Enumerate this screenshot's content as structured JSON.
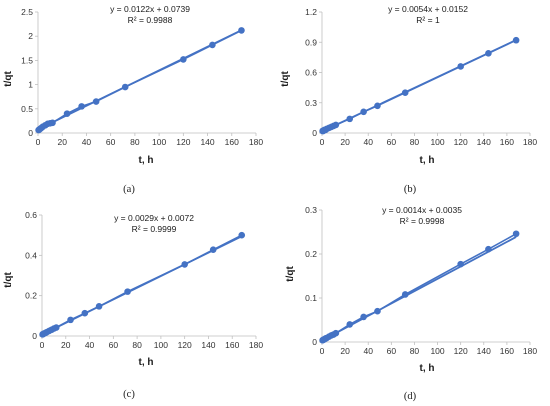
{
  "chart_data": [
    {
      "type": "scatter",
      "panel_label": "(a)",
      "xlabel": "t, h",
      "ylabel": "t/qt",
      "xlim": [
        0,
        180
      ],
      "ylim": [
        0,
        2.5
      ],
      "xticks": [
        "0",
        "20",
        "40",
        "60",
        "80",
        "100",
        "120",
        "140",
        "160",
        "180"
      ],
      "yticks": [
        "0",
        "0.5",
        "1",
        "1.5",
        "2",
        "2.5"
      ],
      "equation": "y = 0.0122x + 0.0739",
      "r2_text": "R² = 0.9988",
      "trendline": {
        "slope": 0.0122,
        "intercept": 0.0739
      },
      "points": [
        {
          "x": 0.5,
          "y": 0.06
        },
        {
          "x": 1,
          "y": 0.07
        },
        {
          "x": 2,
          "y": 0.09
        },
        {
          "x": 3,
          "y": 0.11
        },
        {
          "x": 4,
          "y": 0.13
        },
        {
          "x": 6,
          "y": 0.16
        },
        {
          "x": 8,
          "y": 0.19
        },
        {
          "x": 10,
          "y": 0.2
        },
        {
          "x": 12,
          "y": 0.21
        },
        {
          "x": 24,
          "y": 0.4
        },
        {
          "x": 36,
          "y": 0.55
        },
        {
          "x": 48,
          "y": 0.65
        },
        {
          "x": 72,
          "y": 0.95
        },
        {
          "x": 120,
          "y": 1.52
        },
        {
          "x": 144,
          "y": 1.82
        },
        {
          "x": 168,
          "y": 2.12
        }
      ]
    },
    {
      "type": "scatter",
      "panel_label": "(b)",
      "xlabel": "t, h",
      "ylabel": "t/qt",
      "xlim": [
        0,
        180
      ],
      "ylim": [
        0,
        1.2
      ],
      "xticks": [
        "0",
        "20",
        "40",
        "60",
        "80",
        "100",
        "120",
        "140",
        "160",
        "180"
      ],
      "yticks": [
        "0",
        "0.3",
        "0.6",
        "0.9",
        "1.2"
      ],
      "equation": "y = 0.0054x + 0.0152",
      "r2_text": "R² = 1",
      "trendline": {
        "slope": 0.0054,
        "intercept": 0.0152
      },
      "points": [
        {
          "x": 0.5,
          "y": 0.02
        },
        {
          "x": 1,
          "y": 0.02
        },
        {
          "x": 2,
          "y": 0.03
        },
        {
          "x": 3,
          "y": 0.03
        },
        {
          "x": 4,
          "y": 0.04
        },
        {
          "x": 6,
          "y": 0.05
        },
        {
          "x": 8,
          "y": 0.06
        },
        {
          "x": 10,
          "y": 0.07
        },
        {
          "x": 12,
          "y": 0.08
        },
        {
          "x": 24,
          "y": 0.14
        },
        {
          "x": 36,
          "y": 0.21
        },
        {
          "x": 48,
          "y": 0.27
        },
        {
          "x": 72,
          "y": 0.4
        },
        {
          "x": 120,
          "y": 0.66
        },
        {
          "x": 144,
          "y": 0.79
        },
        {
          "x": 168,
          "y": 0.92
        }
      ]
    },
    {
      "type": "scatter",
      "panel_label": "(c)",
      "xlabel": "t, h",
      "ylabel": "t/qt",
      "xlim": [
        0,
        180
      ],
      "ylim": [
        0,
        0.6
      ],
      "xticks": [
        "0",
        "20",
        "40",
        "60",
        "80",
        "100",
        "120",
        "140",
        "160",
        "180"
      ],
      "yticks": [
        "0",
        "0.2",
        "0.4",
        "0.6"
      ],
      "equation": "y = 0.0029x + 0.0072",
      "r2_text": "R² = 0.9999",
      "trendline": {
        "slope": 0.0029,
        "intercept": 0.0072
      },
      "points": [
        {
          "x": 0.5,
          "y": 0.008
        },
        {
          "x": 1,
          "y": 0.01
        },
        {
          "x": 2,
          "y": 0.013
        },
        {
          "x": 3,
          "y": 0.016
        },
        {
          "x": 4,
          "y": 0.019
        },
        {
          "x": 6,
          "y": 0.025
        },
        {
          "x": 8,
          "y": 0.031
        },
        {
          "x": 10,
          "y": 0.037
        },
        {
          "x": 12,
          "y": 0.042
        },
        {
          "x": 24,
          "y": 0.08
        },
        {
          "x": 36,
          "y": 0.113
        },
        {
          "x": 48,
          "y": 0.147
        },
        {
          "x": 72,
          "y": 0.22
        },
        {
          "x": 120,
          "y": 0.355
        },
        {
          "x": 144,
          "y": 0.428
        },
        {
          "x": 168,
          "y": 0.5
        }
      ]
    },
    {
      "type": "scatter",
      "panel_label": "(d)",
      "xlabel": "t, h",
      "ylabel": "t/qt",
      "xlim": [
        0,
        180
      ],
      "ylim": [
        0,
        0.3
      ],
      "xticks": [
        "0",
        "20",
        "40",
        "60",
        "80",
        "100",
        "120",
        "140",
        "160",
        "180"
      ],
      "yticks": [
        "0",
        "0.1",
        "0.2",
        "0.3"
      ],
      "equation": "y = 0.0014x + 0.0035",
      "r2_text": "R² = 0.9998",
      "trendline": {
        "slope": 0.0014,
        "intercept": 0.0035
      },
      "points": [
        {
          "x": 0.5,
          "y": 0.004
        },
        {
          "x": 1,
          "y": 0.005
        },
        {
          "x": 2,
          "y": 0.006
        },
        {
          "x": 3,
          "y": 0.008
        },
        {
          "x": 4,
          "y": 0.009
        },
        {
          "x": 6,
          "y": 0.012
        },
        {
          "x": 8,
          "y": 0.015
        },
        {
          "x": 10,
          "y": 0.017
        },
        {
          "x": 12,
          "y": 0.02
        },
        {
          "x": 24,
          "y": 0.04
        },
        {
          "x": 36,
          "y": 0.057
        },
        {
          "x": 48,
          "y": 0.07
        },
        {
          "x": 72,
          "y": 0.108
        },
        {
          "x": 120,
          "y": 0.177
        },
        {
          "x": 144,
          "y": 0.211
        },
        {
          "x": 168,
          "y": 0.246
        }
      ]
    }
  ],
  "colors": {
    "series": "#4472c4",
    "axis": "#bfbfbf"
  }
}
